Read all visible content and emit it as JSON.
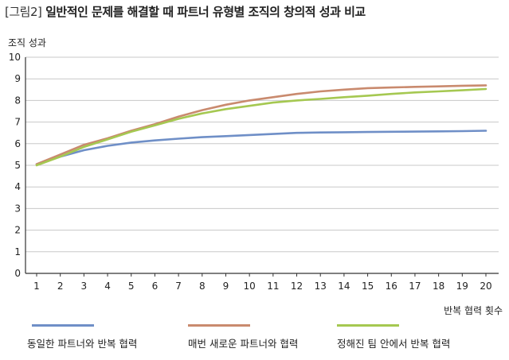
{
  "title_tag": "[그림2]",
  "title_text": "일반적인 문제를 해결할 때 파트너 유형별 조직의 창의적 성과 비교",
  "colors": {
    "axis": "#333333",
    "grid": "#c8c8c8"
  },
  "chart_data": {
    "type": "line",
    "ylabel": "조직 성과",
    "xlabel": "반복 협력 횟수",
    "ylim": [
      0,
      10
    ],
    "xlim": [
      1,
      20
    ],
    "grid": "horizontal",
    "legend_position": "bottom",
    "x": [
      1,
      2,
      3,
      4,
      5,
      6,
      7,
      8,
      9,
      10,
      11,
      12,
      13,
      14,
      15,
      16,
      17,
      18,
      19,
      20
    ],
    "yticks": [
      "0",
      "1",
      "2",
      "3",
      "4",
      "5",
      "6",
      "7",
      "8",
      "9",
      "10"
    ],
    "series": [
      {
        "name": "동일한 파트너와 반복 협력",
        "color": "#6f8fc7",
        "values": [
          5.05,
          5.4,
          5.7,
          5.9,
          6.05,
          6.15,
          6.23,
          6.3,
          6.35,
          6.4,
          6.45,
          6.5,
          6.52,
          6.53,
          6.54,
          6.55,
          6.56,
          6.57,
          6.58,
          6.6
        ]
      },
      {
        "name": "매번 새로운 파트너와 협력",
        "color": "#c98a6e",
        "values": [
          5.05,
          5.5,
          5.95,
          6.25,
          6.6,
          6.9,
          7.25,
          7.55,
          7.8,
          8.0,
          8.15,
          8.3,
          8.42,
          8.5,
          8.57,
          8.6,
          8.63,
          8.65,
          8.68,
          8.7
        ]
      },
      {
        "name": "정해진 팀 안에서 반복 협력",
        "color": "#a5c851",
        "values": [
          5.0,
          5.4,
          5.85,
          6.2,
          6.55,
          6.85,
          7.15,
          7.4,
          7.6,
          7.75,
          7.9,
          8.0,
          8.07,
          8.15,
          8.22,
          8.3,
          8.37,
          8.42,
          8.47,
          8.53
        ]
      }
    ]
  }
}
